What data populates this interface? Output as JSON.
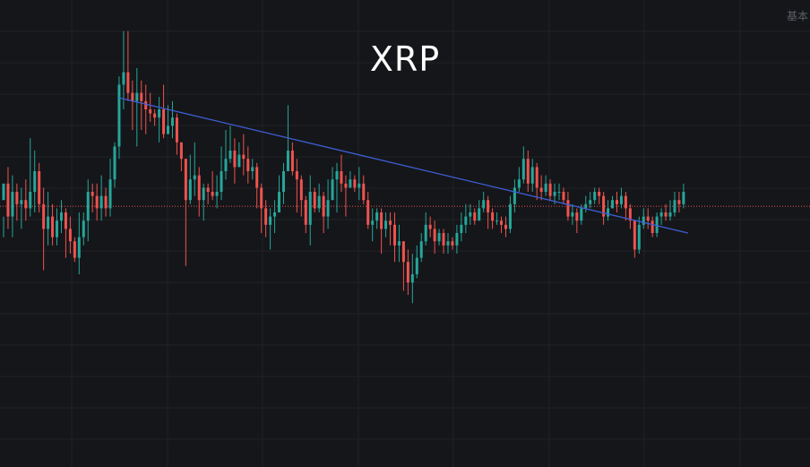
{
  "header": {
    "corner_label": "基本"
  },
  "chart_data": {
    "type": "candlestick",
    "title": "XRP",
    "xlabel": "",
    "ylabel": "",
    "grid": true,
    "ylim": [
      0,
      100
    ],
    "colors": {
      "up": "#26a69a",
      "down": "#ef5350",
      "trendline": "#3d5fd6",
      "price_line": "#ef5350",
      "background": "#151619"
    },
    "current_price_line": 56.5,
    "trendline": {
      "start": {
        "index": 26,
        "value": 82.8
      },
      "end": {
        "index": 154,
        "value": 50.0
      }
    },
    "candles": [
      [
        58,
        62,
        54,
        49
      ],
      [
        62,
        54,
        66,
        51
      ],
      [
        54,
        60,
        64,
        49
      ],
      [
        60,
        57,
        62,
        53
      ],
      [
        57,
        58,
        61,
        51
      ],
      [
        58,
        56,
        63,
        53
      ],
      [
        56,
        60,
        73,
        54
      ],
      [
        60,
        65,
        70,
        55
      ],
      [
        65,
        57,
        67,
        55
      ],
      [
        57,
        51,
        61,
        41
      ],
      [
        51,
        54,
        60,
        47
      ],
      [
        54,
        49,
        57,
        47
      ],
      [
        49,
        53,
        56,
        47
      ],
      [
        53,
        55,
        58,
        50
      ],
      [
        55,
        51,
        56,
        44
      ],
      [
        51,
        48,
        54,
        45
      ],
      [
        48,
        44,
        49,
        43
      ],
      [
        44,
        49,
        55,
        40
      ],
      [
        49,
        53,
        55,
        47
      ],
      [
        53,
        60,
        63,
        48
      ],
      [
        60,
        59,
        62,
        55
      ],
      [
        59,
        56,
        62,
        53
      ],
      [
        56,
        59,
        64,
        53
      ],
      [
        59,
        56,
        61,
        54
      ],
      [
        56,
        63,
        68,
        54
      ],
      [
        63,
        71,
        72,
        61
      ],
      [
        71,
        86,
        88,
        68
      ],
      [
        86,
        89,
        99,
        80
      ],
      [
        89,
        84,
        99,
        82
      ],
      [
        84,
        82,
        87,
        75
      ],
      [
        82,
        84,
        90,
        71
      ],
      [
        84,
        82,
        87,
        75
      ],
      [
        82,
        80,
        86,
        74
      ],
      [
        80,
        79,
        84,
        77
      ],
      [
        79,
        78,
        80,
        76
      ],
      [
        78,
        80,
        83,
        72
      ],
      [
        80,
        74,
        86,
        73
      ],
      [
        74,
        76,
        81,
        74
      ],
      [
        76,
        78,
        82,
        73
      ],
      [
        78,
        72,
        79,
        69
      ],
      [
        72,
        68,
        72,
        65
      ],
      [
        68,
        58,
        68,
        42
      ],
      [
        58,
        63,
        69,
        57
      ],
      [
        63,
        64,
        72,
        59
      ],
      [
        64,
        58,
        66,
        54
      ],
      [
        58,
        61,
        62,
        53
      ],
      [
        61,
        60,
        62,
        57
      ],
      [
        60,
        59,
        65,
        58
      ],
      [
        59,
        60,
        64,
        56
      ],
      [
        60,
        65,
        71,
        58
      ],
      [
        65,
        68,
        75,
        63
      ],
      [
        68,
        70,
        76,
        67
      ],
      [
        70,
        66,
        73,
        62
      ],
      [
        66,
        69,
        72,
        66
      ],
      [
        69,
        68,
        74,
        64
      ],
      [
        68,
        65,
        71,
        62
      ],
      [
        65,
        66,
        68,
        63
      ],
      [
        66,
        61,
        67,
        56
      ],
      [
        61,
        56,
        62,
        50
      ],
      [
        56,
        52,
        58,
        49
      ],
      [
        52,
        54,
        56,
        46
      ],
      [
        54,
        55,
        58,
        50
      ],
      [
        55,
        60,
        64,
        55
      ],
      [
        60,
        65,
        67,
        57
      ],
      [
        65,
        70,
        81,
        65
      ],
      [
        70,
        65,
        72,
        64
      ],
      [
        65,
        63,
        68,
        55
      ],
      [
        63,
        58,
        64,
        54
      ],
      [
        58,
        52,
        59,
        50
      ],
      [
        52,
        60,
        64,
        47
      ],
      [
        60,
        56,
        61,
        55
      ],
      [
        56,
        59,
        62,
        55
      ],
      [
        59,
        54,
        60,
        50
      ],
      [
        54,
        58,
        63,
        51
      ],
      [
        58,
        63,
        66,
        58
      ],
      [
        63,
        65,
        67,
        55
      ],
      [
        65,
        62,
        69,
        60
      ],
      [
        62,
        61,
        64,
        54
      ],
      [
        61,
        63,
        65,
        61
      ],
      [
        63,
        61,
        64,
        60
      ],
      [
        61,
        62,
        66,
        58
      ],
      [
        62,
        58,
        64,
        57
      ],
      [
        58,
        52,
        60,
        51
      ],
      [
        52,
        53,
        56,
        48
      ],
      [
        53,
        55,
        56,
        51
      ],
      [
        55,
        51,
        56,
        45
      ],
      [
        51,
        53,
        55,
        49
      ],
      [
        53,
        52,
        55,
        47
      ],
      [
        52,
        47,
        55,
        43
      ],
      [
        47,
        48,
        52,
        43
      ],
      [
        48,
        43,
        48,
        36
      ],
      [
        43,
        38,
        46,
        35
      ],
      [
        38,
        40,
        45,
        33
      ],
      [
        40,
        44,
        47,
        39
      ],
      [
        44,
        48,
        50,
        43
      ],
      [
        48,
        52,
        55,
        47
      ],
      [
        52,
        51,
        54,
        49
      ],
      [
        51,
        48,
        53,
        45
      ],
      [
        48,
        50,
        51,
        47
      ],
      [
        50,
        47,
        51,
        45
      ],
      [
        47,
        48,
        50,
        45
      ],
      [
        48,
        47,
        49,
        46
      ],
      [
        47,
        50,
        52,
        45
      ],
      [
        50,
        52,
        55,
        48
      ],
      [
        52,
        54,
        57,
        50
      ],
      [
        54,
        55,
        57,
        52
      ],
      [
        55,
        53,
        56,
        52
      ],
      [
        53,
        56,
        58,
        54
      ],
      [
        56,
        58,
        60,
        55
      ],
      [
        58,
        55,
        59,
        51
      ],
      [
        55,
        53,
        56,
        51
      ],
      [
        53,
        53,
        55,
        52
      ],
      [
        53,
        52,
        54,
        50
      ],
      [
        52,
        51,
        54,
        49
      ],
      [
        51,
        57,
        59,
        50
      ],
      [
        57,
        61,
        63,
        55
      ],
      [
        61,
        63,
        66,
        60
      ],
      [
        63,
        68,
        71,
        62
      ],
      [
        68,
        62,
        70,
        60
      ],
      [
        62,
        66,
        68,
        60
      ],
      [
        66,
        61,
        67,
        58
      ],
      [
        61,
        60,
        64,
        58
      ],
      [
        60,
        62,
        64,
        59
      ],
      [
        62,
        59,
        63,
        58
      ],
      [
        59,
        60,
        62,
        57
      ],
      [
        60,
        60,
        62,
        58
      ],
      [
        60,
        58,
        61,
        57
      ],
      [
        58,
        54,
        60,
        53
      ],
      [
        54,
        55,
        57,
        52
      ],
      [
        55,
        53,
        56,
        50
      ],
      [
        53,
        56,
        57,
        52
      ],
      [
        56,
        57,
        59,
        55
      ],
      [
        57,
        58,
        60,
        56
      ],
      [
        58,
        60,
        61,
        57
      ],
      [
        60,
        59,
        61,
        57
      ],
      [
        59,
        54,
        60,
        52
      ],
      [
        54,
        56,
        58,
        53
      ],
      [
        56,
        58,
        59,
        56
      ],
      [
        58,
        57,
        60,
        55
      ],
      [
        57,
        59,
        61,
        56
      ],
      [
        59,
        56,
        60,
        53
      ],
      [
        56,
        53,
        57,
        51
      ],
      [
        53,
        46,
        53,
        44
      ],
      [
        46,
        52,
        54,
        45
      ],
      [
        52,
        54,
        56,
        51
      ],
      [
        54,
        53,
        56,
        51
      ],
      [
        53,
        50,
        54,
        49
      ],
      [
        50,
        54,
        55,
        49
      ],
      [
        54,
        55,
        56,
        52
      ],
      [
        55,
        54,
        57,
        53
      ],
      [
        54,
        55,
        58,
        53
      ],
      [
        55,
        58,
        60,
        54
      ],
      [
        58,
        57,
        60,
        55
      ],
      [
        57,
        60,
        62,
        56
      ]
    ]
  }
}
